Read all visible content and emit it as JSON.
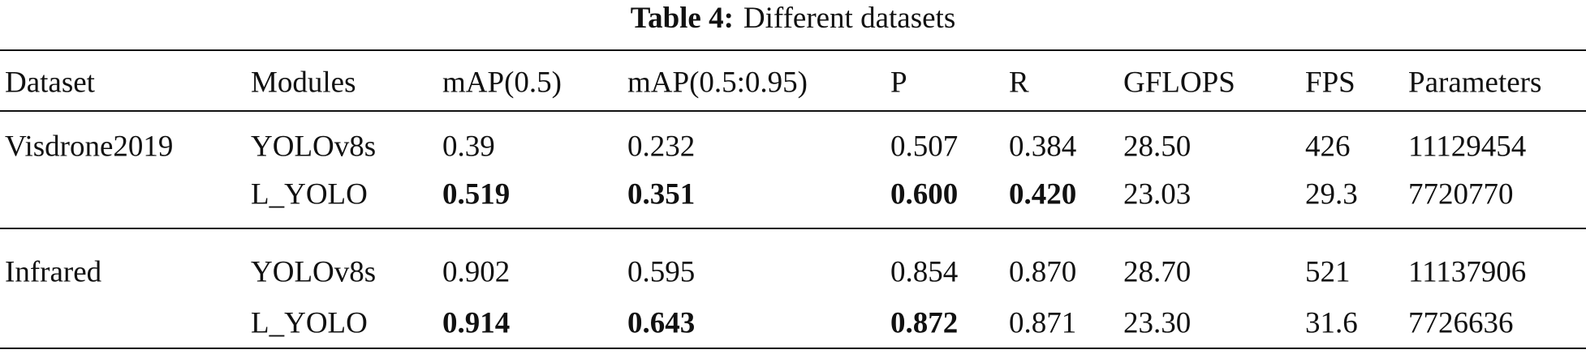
{
  "caption": {
    "label": "Table 4:",
    "text": "Different datasets"
  },
  "table": {
    "header": [
      "Dataset",
      "Modules",
      "mAP(0.5)",
      "mAP(0.5:0.95)",
      "P",
      "R",
      "GFLOPS",
      "FPS",
      "Parameters"
    ],
    "groups": [
      {
        "dataset": "Visdrone2019",
        "rows": [
          [
            "YOLOv8s",
            "0.39",
            "0.232",
            "0.507",
            "0.384",
            "28.50",
            "426",
            "11129454"
          ],
          [
            "L_YOLO",
            {
              "text": "0.519",
              "bold": true
            },
            {
              "text": "0.351",
              "bold": true
            },
            {
              "text": "0.600",
              "bold": true
            },
            {
              "text": "0.420",
              "bold": true
            },
            "23.03",
            "29.3",
            "7720770"
          ]
        ]
      },
      {
        "dataset": "Infrared",
        "rows": [
          [
            "YOLOv8s",
            "0.902",
            "0.595",
            "0.854",
            "0.870",
            "28.70",
            "521",
            "11137906"
          ],
          [
            "L_YOLO",
            {
              "text": "0.914",
              "bold": true
            },
            {
              "text": "0.643",
              "bold": true
            },
            {
              "text": "0.872",
              "bold": true
            },
            "0.871",
            "23.30",
            "31.6",
            "7726636"
          ]
        ]
      }
    ]
  }
}
